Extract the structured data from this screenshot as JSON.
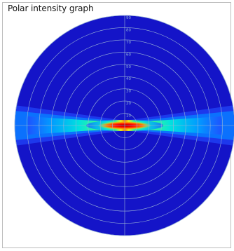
{
  "title": "Polar intensity graph",
  "chart_data": {
    "type": "heatmap",
    "projection": "polar",
    "title": "Polar intensity graph",
    "radial_ticks": [
      "10",
      "20",
      "30",
      "40",
      "50",
      "60",
      "70",
      "80",
      "90"
    ],
    "r_range": [
      0,
      90
    ],
    "grid": true,
    "colormap": [
      "#1414c8",
      "#0050ff",
      "#00c8ff",
      "#40ff80",
      "#ffff00",
      "#ff8000",
      "#ff0000",
      "#8b0000"
    ],
    "intensity_profile": {
      "description_axis": "horizontal",
      "x": [
        -90,
        -75,
        -60,
        -45,
        -30,
        -20,
        -10,
        0,
        10,
        20,
        30,
        45,
        60,
        75,
        90
      ],
      "value": [
        0.15,
        0.2,
        0.28,
        0.38,
        0.55,
        0.72,
        0.92,
        1.0,
        0.92,
        0.72,
        0.55,
        0.38,
        0.28,
        0.2,
        0.15
      ]
    },
    "background_value": 0.05
  }
}
